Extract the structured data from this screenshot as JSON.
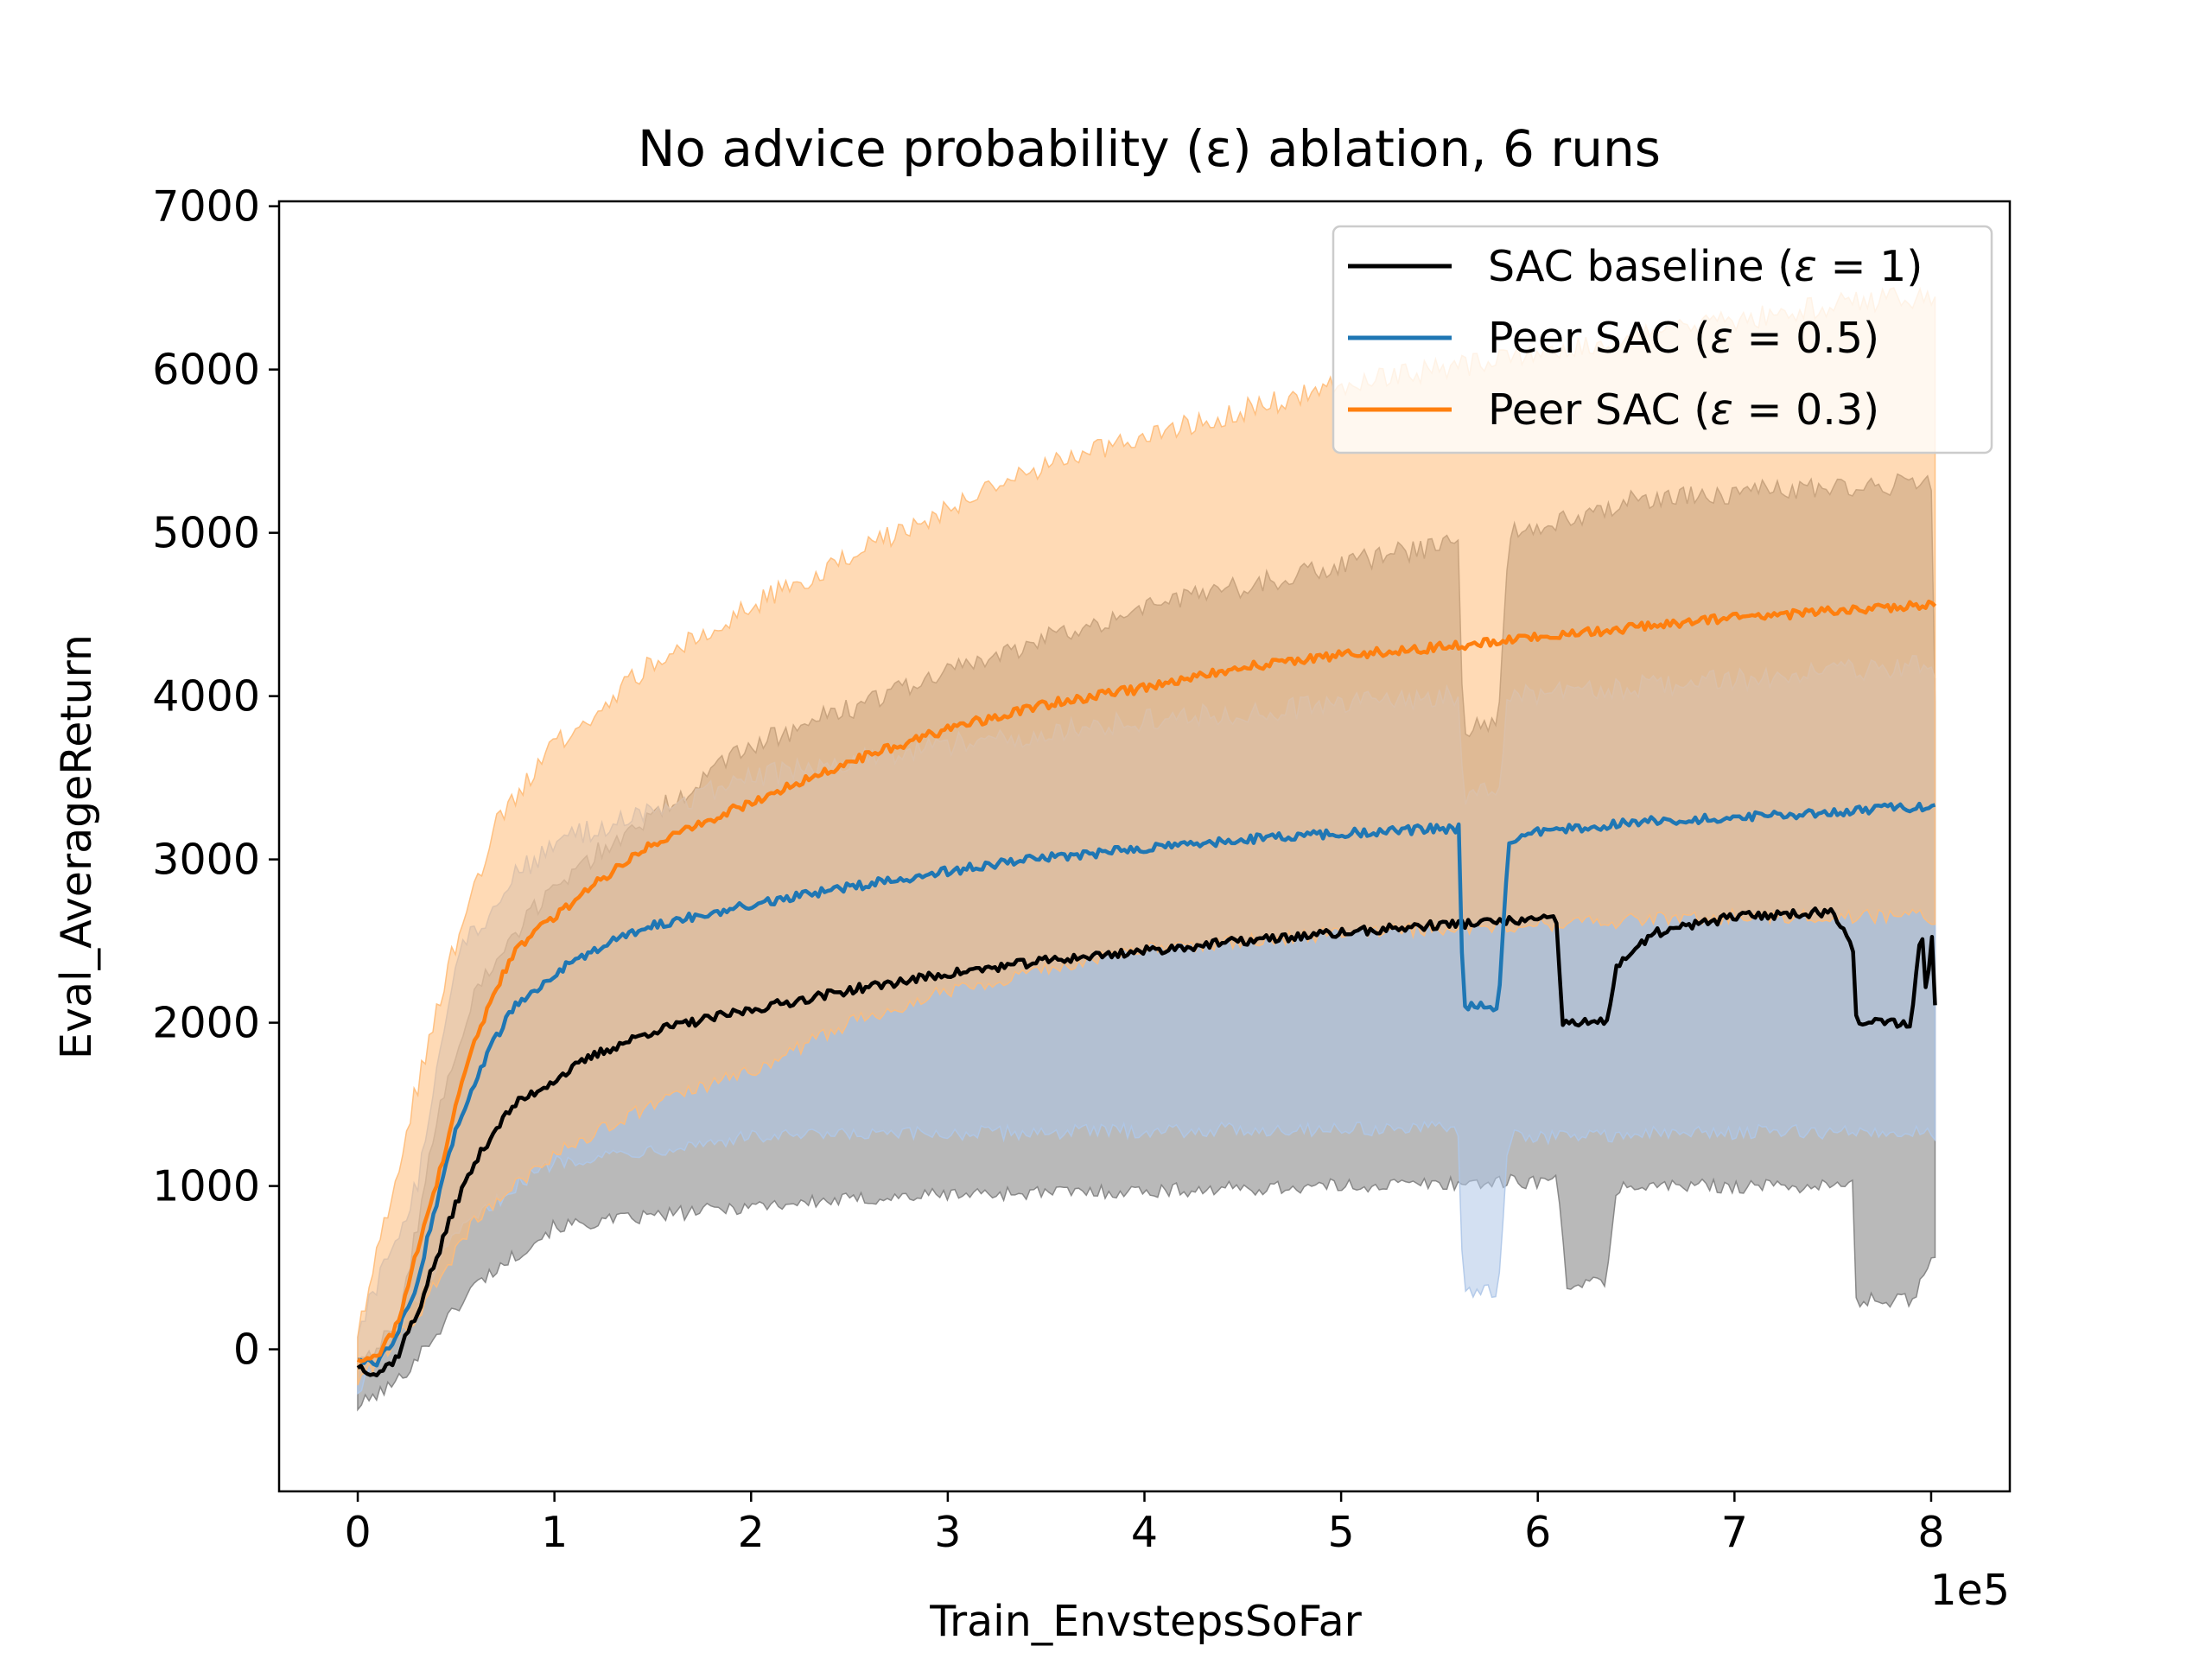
{
  "chart_data": {
    "type": "line",
    "title": "No advice probability (ε) ablation, 6 runs",
    "xlabel": "Train_EnvstepsSoFar",
    "ylabel": "Eval_AverageReturn",
    "x_offset_label": "1e5",
    "xlim": [
      -0.4,
      8.4
    ],
    "ylim": [
      -870,
      7030
    ],
    "xticks": [
      0,
      1,
      2,
      3,
      4,
      5,
      6,
      7,
      8
    ],
    "xtick_labels": [
      "0",
      "1",
      "2",
      "3",
      "4",
      "5",
      "6",
      "7",
      "8"
    ],
    "yticks": [
      0,
      1000,
      2000,
      3000,
      4000,
      5000,
      6000,
      7000
    ],
    "ytick_labels": [
      "0",
      "1000",
      "2000",
      "3000",
      "4000",
      "5000",
      "6000",
      "7000"
    ],
    "grid": false,
    "legend_position": "top-right",
    "series": [
      {
        "name": "SAC baseline (ε = 1)",
        "legend_main": "SAC baseline (",
        "legend_eq": " = 1)",
        "color": "#000000",
        "band_color": "#7f7f7f",
        "points": [
          [
            0,
            -100
          ],
          [
            0.1,
            -150
          ],
          [
            0.2,
            -50
          ],
          [
            0.25,
            100
          ],
          [
            0.3,
            200
          ],
          [
            0.35,
            400
          ],
          [
            0.4,
            550
          ],
          [
            0.5,
            900
          ],
          [
            0.6,
            1150
          ],
          [
            0.7,
            1350
          ],
          [
            0.8,
            1500
          ],
          [
            1.0,
            1650
          ],
          [
            1.2,
            1800
          ],
          [
            1.5,
            1950
          ],
          [
            2.0,
            2080
          ],
          [
            2.5,
            2200
          ],
          [
            3.0,
            2300
          ],
          [
            3.5,
            2380
          ],
          [
            4.0,
            2440
          ],
          [
            4.5,
            2500
          ],
          [
            5.0,
            2550
          ],
          [
            5.5,
            2600
          ],
          [
            6.0,
            2630
          ],
          [
            6.1,
            2630
          ],
          [
            6.12,
            2000
          ],
          [
            6.35,
            2000
          ],
          [
            6.4,
            2350
          ],
          [
            6.6,
            2550
          ],
          [
            7.0,
            2650
          ],
          [
            7.5,
            2680
          ],
          [
            7.6,
            2500
          ],
          [
            7.62,
            2000
          ],
          [
            7.9,
            2000
          ],
          [
            7.95,
            2600
          ],
          [
            7.98,
            2100
          ],
          [
            8.0,
            2650
          ],
          [
            8.02,
            2100
          ]
        ],
        "band_low": [
          [
            0,
            -350
          ],
          [
            0.2,
            -200
          ],
          [
            0.4,
            100
          ],
          [
            0.6,
            400
          ],
          [
            1.0,
            750
          ],
          [
            2.0,
            880
          ],
          [
            3.0,
            950
          ],
          [
            4.0,
            970
          ],
          [
            5.0,
            1000
          ],
          [
            6.0,
            1030
          ],
          [
            6.1,
            1030
          ],
          [
            6.15,
            400
          ],
          [
            6.35,
            400
          ],
          [
            6.4,
            1000
          ],
          [
            7.6,
            1000
          ],
          [
            7.62,
            300
          ],
          [
            7.9,
            300
          ],
          [
            8.02,
            600
          ]
        ],
        "band_high": [
          [
            0,
            -50
          ],
          [
            0.2,
            100
          ],
          [
            0.4,
            1400
          ],
          [
            0.6,
            2200
          ],
          [
            1.0,
            2850
          ],
          [
            2.0,
            3700
          ],
          [
            3.0,
            4150
          ],
          [
            4.0,
            4550
          ],
          [
            5.0,
            4800
          ],
          [
            5.6,
            4950
          ],
          [
            5.62,
            3800
          ],
          [
            5.8,
            3800
          ],
          [
            5.85,
            5000
          ],
          [
            6.5,
            5200
          ],
          [
            7.0,
            5250
          ],
          [
            8.0,
            5300
          ],
          [
            8.02,
            4000
          ]
        ]
      },
      {
        "name": "Peer SAC (ε = 0.5)",
        "legend_main": "Peer SAC (",
        "legend_eq": " = 0.5)",
        "color": "#1f77b4",
        "band_color": "#aec7e8",
        "points": [
          [
            0,
            -50
          ],
          [
            0.1,
            -100
          ],
          [
            0.2,
            100
          ],
          [
            0.3,
            400
          ],
          [
            0.4,
            900
          ],
          [
            0.5,
            1350
          ],
          [
            0.6,
            1650
          ],
          [
            0.7,
            1900
          ],
          [
            0.8,
            2100
          ],
          [
            1.0,
            2300
          ],
          [
            1.2,
            2450
          ],
          [
            1.5,
            2600
          ],
          [
            2.0,
            2720
          ],
          [
            2.5,
            2830
          ],
          [
            3.0,
            2930
          ],
          [
            3.5,
            3010
          ],
          [
            4.0,
            3070
          ],
          [
            4.5,
            3120
          ],
          [
            5.0,
            3160
          ],
          [
            5.5,
            3190
          ],
          [
            5.6,
            3190
          ],
          [
            5.62,
            2100
          ],
          [
            5.8,
            2100
          ],
          [
            5.85,
            3100
          ],
          [
            6.0,
            3170
          ],
          [
            6.5,
            3230
          ],
          [
            7.0,
            3260
          ],
          [
            7.5,
            3290
          ],
          [
            8.0,
            3330
          ],
          [
            8.02,
            3330
          ]
        ],
        "band_low": [
          [
            0,
            -250
          ],
          [
            0.3,
            300
          ],
          [
            0.5,
            700
          ],
          [
            0.8,
            1000
          ],
          [
            1.0,
            1150
          ],
          [
            2.0,
            1300
          ],
          [
            3.0,
            1320
          ],
          [
            4.0,
            1340
          ],
          [
            5.0,
            1350
          ],
          [
            5.6,
            1350
          ],
          [
            5.62,
            350
          ],
          [
            5.8,
            350
          ],
          [
            5.85,
            1300
          ],
          [
            7.0,
            1330
          ],
          [
            8.0,
            1330
          ],
          [
            8.02,
            1300
          ]
        ],
        "band_high": [
          [
            0,
            100
          ],
          [
            0.3,
            1000
          ],
          [
            0.5,
            2400
          ],
          [
            0.8,
            2900
          ],
          [
            1.0,
            3100
          ],
          [
            2.0,
            3500
          ],
          [
            3.0,
            3700
          ],
          [
            4.0,
            3850
          ],
          [
            5.0,
            3950
          ],
          [
            5.6,
            4000
          ],
          [
            5.62,
            3400
          ],
          [
            5.8,
            3400
          ],
          [
            5.85,
            4000
          ],
          [
            7.0,
            4100
          ],
          [
            8.0,
            4200
          ],
          [
            8.02,
            4100
          ]
        ]
      },
      {
        "name": "Peer SAC (ε = 0.3)",
        "legend_main": "Peer SAC (",
        "legend_eq": " = 0.3)",
        "color": "#ff7f0e",
        "band_color": "#ffbb78",
        "points": [
          [
            0,
            -50
          ],
          [
            0.1,
            -50
          ],
          [
            0.2,
            150
          ],
          [
            0.3,
            600
          ],
          [
            0.4,
            1000
          ],
          [
            0.5,
            1500
          ],
          [
            0.6,
            1900
          ],
          [
            0.7,
            2200
          ],
          [
            0.8,
            2450
          ],
          [
            1.0,
            2650
          ],
          [
            1.2,
            2850
          ],
          [
            1.5,
            3100
          ],
          [
            2.0,
            3350
          ],
          [
            2.5,
            3600
          ],
          [
            3.0,
            3800
          ],
          [
            3.5,
            3950
          ],
          [
            4.0,
            4050
          ],
          [
            4.5,
            4180
          ],
          [
            5.0,
            4250
          ],
          [
            5.5,
            4300
          ],
          [
            6.0,
            4360
          ],
          [
            6.5,
            4420
          ],
          [
            7.0,
            4480
          ],
          [
            7.5,
            4520
          ],
          [
            8.0,
            4560
          ],
          [
            8.02,
            4550
          ]
        ],
        "band_low": [
          [
            0,
            -200
          ],
          [
            0.3,
            200
          ],
          [
            0.6,
            800
          ],
          [
            1.0,
            1200
          ],
          [
            1.5,
            1500
          ],
          [
            2.0,
            1700
          ],
          [
            2.5,
            2000
          ],
          [
            3.0,
            2200
          ],
          [
            4.0,
            2450
          ],
          [
            5.0,
            2550
          ],
          [
            6.0,
            2600
          ],
          [
            7.0,
            2650
          ],
          [
            8.0,
            2650
          ],
          [
            8.02,
            2600
          ]
        ],
        "band_high": [
          [
            0,
            100
          ],
          [
            0.3,
            1600
          ],
          [
            0.5,
            2500
          ],
          [
            0.7,
            3200
          ],
          [
            1.0,
            3700
          ],
          [
            1.5,
            4200
          ],
          [
            2.0,
            4550
          ],
          [
            2.5,
            4850
          ],
          [
            3.0,
            5150
          ],
          [
            3.5,
            5400
          ],
          [
            4.0,
            5600
          ],
          [
            4.5,
            5750
          ],
          [
            5.0,
            5900
          ],
          [
            5.5,
            6000
          ],
          [
            6.0,
            6100
          ],
          [
            6.5,
            6200
          ],
          [
            7.0,
            6300
          ],
          [
            7.5,
            6400
          ],
          [
            8.0,
            6450
          ],
          [
            8.02,
            6400
          ]
        ]
      }
    ]
  }
}
